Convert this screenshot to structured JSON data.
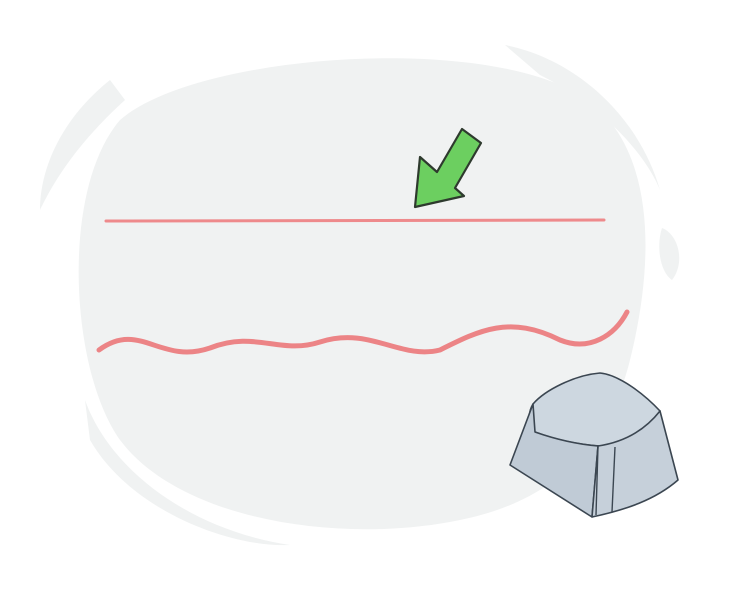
{
  "illustration": {
    "colors": {
      "background": "#ffffff",
      "blob": "#f0f2f2",
      "straight_line": "#ee8a8c",
      "wavy_line": "#ec8486",
      "arrow_fill": "#6ccf60",
      "arrow_stroke": "#2e3a2e",
      "keycap_top": "#cdd7e0",
      "keycap_side": "#c0cbd6",
      "keycap_stroke": "#3b4651"
    },
    "icons": {
      "arrow": "arrow-down-left-icon",
      "keycap": "keyboard-key-icon"
    }
  }
}
